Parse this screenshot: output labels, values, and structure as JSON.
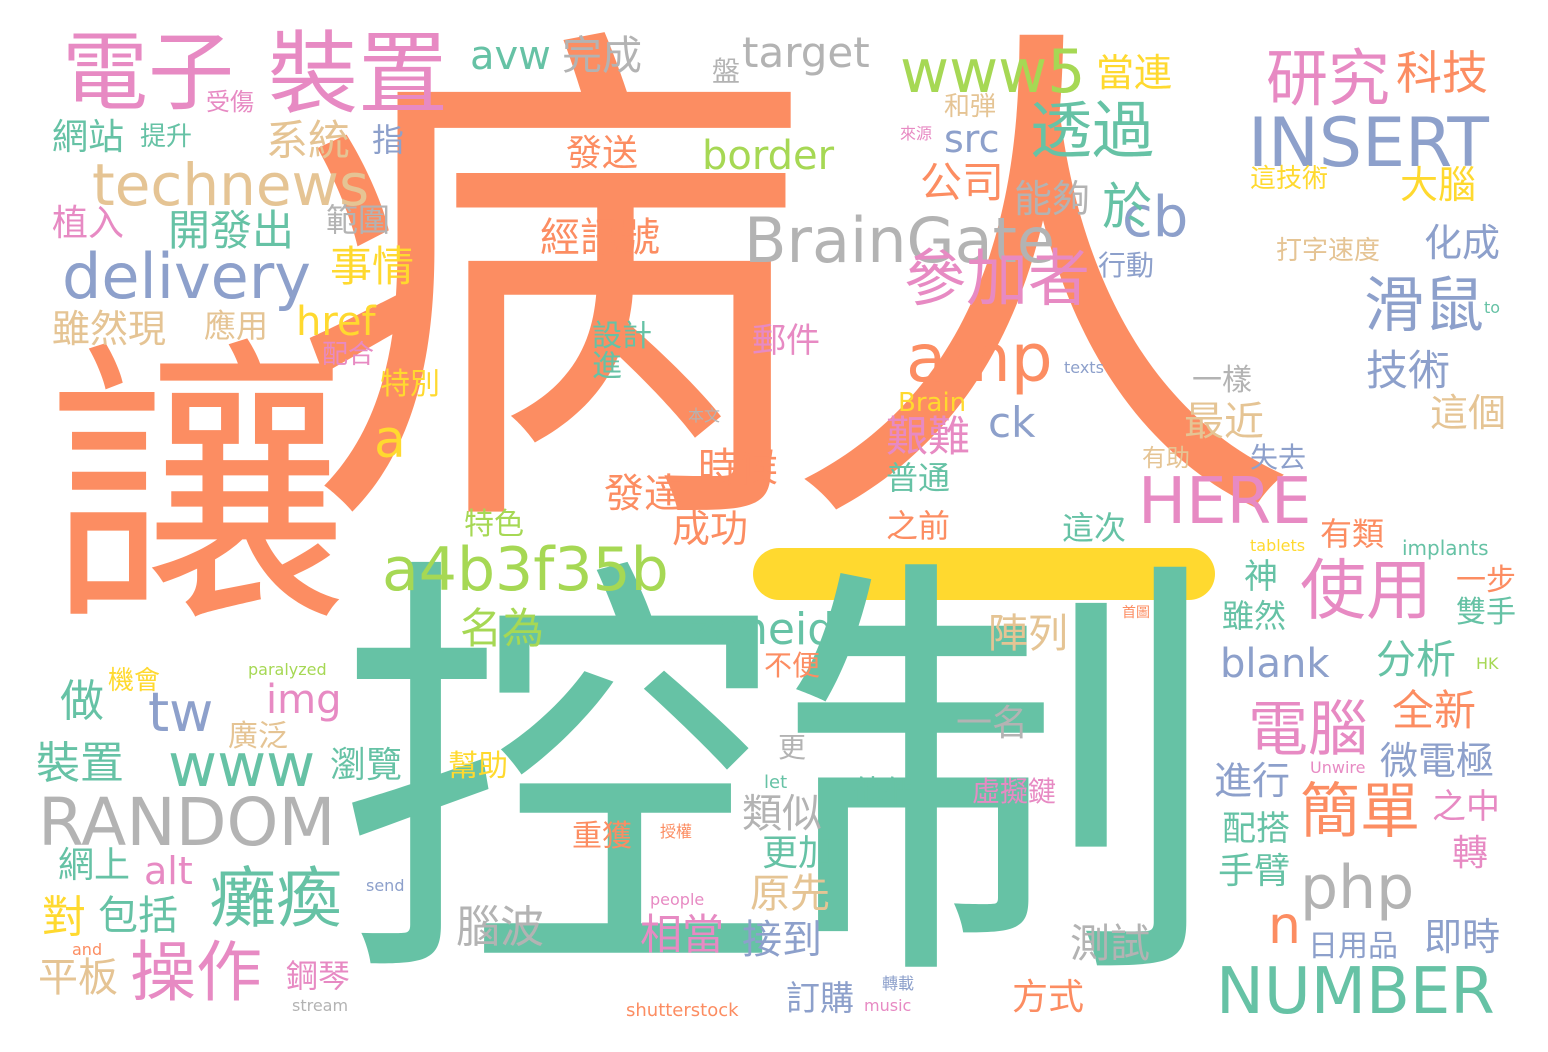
{
  "palette": {
    "orange": "#fc8d62",
    "teal": "#66c2a5",
    "blue": "#8da0cb",
    "pink": "#e78ac3",
    "green": "#a6d854",
    "yellow": "#ffd92f",
    "tan": "#e5c494",
    "gray": "#b3b3b3"
  },
  "words": [
    {
      "text": "病人",
      "color": "#fc8d62"
    },
    {
      "text": "讓",
      "color": "#fc8d62"
    },
    {
      "text": "控制",
      "color": "#66c2a5"
    },
    {
      "text": "電子",
      "color": "#e78ac3"
    },
    {
      "text": "裝置",
      "color": "#e78ac3"
    },
    {
      "text": "technews",
      "color": "#e5c494"
    },
    {
      "text": "delivery",
      "color": "#8da0cb"
    },
    {
      "text": "BrainGate",
      "color": "#b3b3b3"
    },
    {
      "text": "www5",
      "color": "#a6d854"
    },
    {
      "text": "INSERT",
      "color": "#8da0cb"
    },
    {
      "text": "研究",
      "color": "#e78ac3"
    },
    {
      "text": "科技",
      "color": "#fc8d62"
    },
    {
      "text": "透過",
      "color": "#66c2a5"
    },
    {
      "text": "參加者",
      "color": "#e78ac3"
    },
    {
      "text": "amp",
      "color": "#fc8d62"
    },
    {
      "text": "HERE",
      "color": "#e78ac3"
    },
    {
      "text": "a4b3f35b",
      "color": "#a6d854"
    },
    {
      "text": "使用",
      "color": "#e78ac3"
    },
    {
      "text": "滑鼠",
      "color": "#8da0cb"
    },
    {
      "text": "RANDOM",
      "color": "#b3b3b3"
    },
    {
      "text": "NUMBER",
      "color": "#66c2a5"
    },
    {
      "text": "癱瘓",
      "color": "#66c2a5"
    },
    {
      "text": "操作",
      "color": "#e78ac3"
    },
    {
      "text": "php",
      "color": "#b3b3b3"
    },
    {
      "text": "電腦",
      "color": "#e78ac3"
    },
    {
      "text": "簡單",
      "color": "#fc8d62"
    },
    {
      "text": "cb",
      "color": "#8da0cb"
    },
    {
      "text": "border",
      "color": "#a6d854"
    },
    {
      "text": "target",
      "color": "#b3b3b3"
    },
    {
      "text": "avw",
      "color": "#66c2a5"
    },
    {
      "text": "完成",
      "color": "#b3b3b3"
    },
    {
      "text": "系統",
      "color": "#e5c494"
    },
    {
      "text": "src",
      "color": "#8da0cb"
    },
    {
      "text": "公司",
      "color": "#fc8d62"
    },
    {
      "text": "於",
      "color": "#66c2a5"
    },
    {
      "text": "當連",
      "color": "#ffd92f"
    },
    {
      "text": "大腦",
      "color": "#ffd92f"
    },
    {
      "text": "開發出",
      "color": "#66c2a5"
    },
    {
      "text": "事情",
      "color": "#ffd92f"
    },
    {
      "text": "href",
      "color": "#ffd92f"
    },
    {
      "text": "a",
      "color": "#ffd92f"
    },
    {
      "text": "經訊號",
      "color": "#fc8d62"
    },
    {
      "text": "發送",
      "color": "#fc8d62"
    },
    {
      "text": "能夠",
      "color": "#b3b3b3"
    },
    {
      "text": "化成",
      "color": "#8da0cb"
    },
    {
      "text": "技術",
      "color": "#8da0cb"
    },
    {
      "text": "最近",
      "color": "#e5c494"
    },
    {
      "text": "艱難",
      "color": "#e78ac3"
    },
    {
      "text": "ck",
      "color": "#8da0cb"
    },
    {
      "text": "時候",
      "color": "#fc8d62"
    },
    {
      "text": "發達",
      "color": "#fc8d62"
    },
    {
      "text": "成功",
      "color": "#fc8d62"
    },
    {
      "text": "名為",
      "color": "#a6d854"
    },
    {
      "text": "zoneid",
      "color": "#66c2a5"
    },
    {
      "text": "tw",
      "color": "#8da0cb"
    },
    {
      "text": "www",
      "color": "#66c2a5"
    },
    {
      "text": "img",
      "color": "#e78ac3"
    },
    {
      "text": "n",
      "color": "#fc8d62"
    },
    {
      "text": "相當",
      "color": "#e78ac3"
    },
    {
      "text": "接到",
      "color": "#8da0cb"
    },
    {
      "text": "原先",
      "color": "#e5c494"
    },
    {
      "text": "更加",
      "color": "#66c2a5"
    },
    {
      "text": "類似",
      "color": "#b3b3b3"
    },
    {
      "text": "腦波",
      "color": "#b3b3b3"
    },
    {
      "text": "測試",
      "color": "#b3b3b3"
    },
    {
      "text": "方式",
      "color": "#fc8d62"
    },
    {
      "text": "訂購",
      "color": "#8da0cb"
    },
    {
      "text": "全新",
      "color": "#fc8d62"
    },
    {
      "text": "微電極",
      "color": "#8da0cb"
    },
    {
      "text": "blank",
      "color": "#8da0cb"
    },
    {
      "text": "分析",
      "color": "#66c2a5"
    },
    {
      "text": "進行",
      "color": "#8da0cb"
    },
    {
      "text": "配搭",
      "color": "#66c2a5"
    },
    {
      "text": "手臂",
      "color": "#66c2a5"
    },
    {
      "text": "即時",
      "color": "#8da0cb"
    },
    {
      "text": "日用品",
      "color": "#8da0cb"
    },
    {
      "text": "網站",
      "color": "#66c2a5"
    },
    {
      "text": "植入",
      "color": "#e78ac3"
    },
    {
      "text": "雖然現",
      "color": "#e5c494"
    },
    {
      "text": "應用",
      "color": "#e5c494"
    },
    {
      "text": "裝置",
      "color": "#66c2a5"
    },
    {
      "text": "做",
      "color": "#66c2a5"
    },
    {
      "text": "alt",
      "color": "#e78ac3"
    },
    {
      "text": "對",
      "color": "#ffd92f"
    },
    {
      "text": "包括",
      "color": "#66c2a5"
    },
    {
      "text": "平板",
      "color": "#e5c494"
    },
    {
      "text": "網上",
      "color": "#66c2a5"
    },
    {
      "text": "鋼琴",
      "color": "#e78ac3"
    },
    {
      "text": "瀏覽",
      "color": "#66c2a5"
    },
    {
      "text": "廣泛",
      "color": "#e5c494"
    },
    {
      "text": "機會",
      "color": "#ffd92f"
    },
    {
      "text": "一名",
      "color": "#b3b3b3"
    },
    {
      "text": "陣列",
      "color": "#e5c494"
    },
    {
      "text": "一樣",
      "color": "#b3b3b3"
    },
    {
      "text": "這個",
      "color": "#e5c494"
    },
    {
      "text": "有類",
      "color": "#fc8d62"
    },
    {
      "text": "雖然",
      "color": "#66c2a5"
    },
    {
      "text": "一步",
      "color": "#fc8d62"
    },
    {
      "text": "雙手",
      "color": "#66c2a5"
    },
    {
      "text": "之中",
      "color": "#e78ac3"
    },
    {
      "text": "轉",
      "color": "#e78ac3"
    },
    {
      "text": "特色",
      "color": "#a6d854"
    },
    {
      "text": "神",
      "color": "#66c2a5"
    },
    {
      "text": "郵件",
      "color": "#e78ac3"
    },
    {
      "text": "設計",
      "color": "#66c2a5"
    },
    {
      "text": "進",
      "color": "#66c2a5"
    },
    {
      "text": "配合",
      "color": "#e78ac3"
    },
    {
      "text": "特別",
      "color": "#ffd92f"
    },
    {
      "text": "普通",
      "color": "#66c2a5"
    },
    {
      "text": "之前",
      "color": "#fc8d62"
    },
    {
      "text": "這次",
      "color": "#66c2a5"
    },
    {
      "text": "失去",
      "color": "#8da0cb"
    },
    {
      "text": "有助",
      "color": "#e5c494"
    },
    {
      "text": "Brain",
      "color": "#ffd92f"
    },
    {
      "text": "implants",
      "color": "#66c2a5"
    },
    {
      "text": "指",
      "color": "#8da0cb"
    },
    {
      "text": "提升",
      "color": "#66c2a5"
    },
    {
      "text": "受傷",
      "color": "#e78ac3"
    },
    {
      "text": "範圍",
      "color": "#b3b3b3"
    },
    {
      "text": "盤",
      "color": "#b3b3b3"
    },
    {
      "text": "和弾",
      "color": "#e5c494"
    },
    {
      "text": "來源",
      "color": "#e78ac3"
    },
    {
      "text": "這技術",
      "color": "#ffd92f"
    },
    {
      "text": "打字速度",
      "color": "#e5c494"
    },
    {
      "text": "行動",
      "color": "#8da0cb"
    },
    {
      "text": "他們",
      "color": "#66c2a5"
    },
    {
      "text": "虛擬鍵",
      "color": "#e78ac3"
    },
    {
      "text": "不便",
      "color": "#fc8d62"
    },
    {
      "text": "更",
      "color": "#b3b3b3"
    },
    {
      "text": "幫助",
      "color": "#ffd92f"
    },
    {
      "text": "重獲",
      "color": "#fc8d62"
    },
    {
      "text": "授權",
      "color": "#fc8d62"
    },
    {
      "text": "轉載",
      "color": "#8da0cb"
    },
    {
      "text": "let",
      "color": "#66c2a5"
    },
    {
      "text": "texts",
      "color": "#8da0cb"
    },
    {
      "text": "to",
      "color": "#66c2a5"
    },
    {
      "text": "本文",
      "color": "#b3b3b3"
    },
    {
      "text": "tablets",
      "color": "#ffd92f"
    },
    {
      "text": "首圖",
      "color": "#fc8d62"
    },
    {
      "text": "HK",
      "color": "#a6d854"
    },
    {
      "text": "Unwire",
      "color": "#e78ac3"
    },
    {
      "text": "paralyzed",
      "color": "#a6d854"
    },
    {
      "text": "send",
      "color": "#8da0cb"
    },
    {
      "text": "people",
      "color": "#e78ac3"
    },
    {
      "text": "and",
      "color": "#fc8d62"
    },
    {
      "text": "stream",
      "color": "#b3b3b3"
    },
    {
      "text": "music",
      "color": "#e78ac3"
    },
    {
      "text": "shutterstock",
      "color": "#fc8d62"
    }
  ]
}
